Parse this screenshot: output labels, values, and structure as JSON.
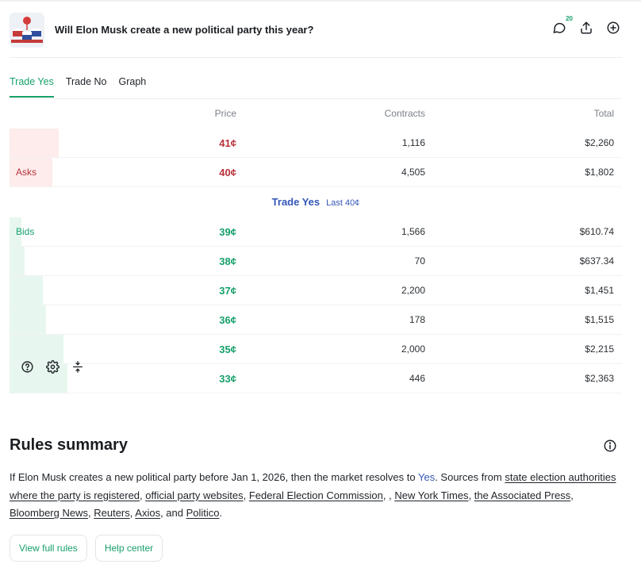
{
  "market": {
    "title": "Will Elon Musk create a new political party this year?",
    "comment_count": "20"
  },
  "tabs": [
    {
      "label": "Trade Yes",
      "active": true
    },
    {
      "label": "Trade No",
      "active": false
    },
    {
      "label": "Graph",
      "active": false
    }
  ],
  "orderbook": {
    "headers": {
      "price": "Price",
      "contracts": "Contracts",
      "total": "Total"
    },
    "asks_label": "Asks",
    "bids_label": "Bids",
    "asks": [
      {
        "price": "41¢",
        "contracts": "1,116",
        "total": "$2,260",
        "depth": 0.08
      },
      {
        "price": "40¢",
        "contracts": "4,505",
        "total": "$1,802",
        "depth": 0.07
      }
    ],
    "spread": {
      "trade_label": "Trade Yes",
      "last_label": "Last 40¢"
    },
    "bids": [
      {
        "price": "39¢",
        "contracts": "1,566",
        "total": "$610.74",
        "depth": 0.02
      },
      {
        "price": "38¢",
        "contracts": "70",
        "total": "$637.34",
        "depth": 0.025
      },
      {
        "price": "37¢",
        "contracts": "2,200",
        "total": "$1,451",
        "depth": 0.055
      },
      {
        "price": "36¢",
        "contracts": "178",
        "total": "$1,515",
        "depth": 0.06
      },
      {
        "price": "35¢",
        "contracts": "2,000",
        "total": "$2,215",
        "depth": 0.088
      },
      {
        "price": "33¢",
        "contracts": "446",
        "total": "$2,363",
        "depth": 0.095
      }
    ]
  },
  "rules": {
    "title": "Rules summary",
    "text_1": "If Elon Musk creates a new political party before Jan 1, 2026, then the market resolves to ",
    "yes_word": "Yes",
    "text_2": ". Sources from ",
    "sources": [
      "state election authorities where the party is registered",
      "official party websites",
      "Federal Election Commission",
      "New York Times",
      "the Associated Press",
      "Bloomberg News",
      "Reuters",
      "Axios",
      "Politico"
    ],
    "sep_comma": ", ",
    "sep_double": ", , ",
    "sep_and": ", and ",
    "end": ".",
    "view_full_rules": "View full rules",
    "help_center": "Help center"
  },
  "colors": {
    "accent_green": "#17a06a",
    "ask_red": "#b8323c",
    "trade_blue": "#3557b7"
  },
  "icons": [
    "comment-icon",
    "share-icon",
    "add-icon",
    "help-icon",
    "settings-icon",
    "collapse-icon",
    "info-icon"
  ]
}
